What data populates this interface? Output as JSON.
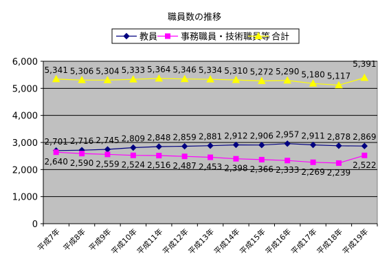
{
  "chart_data": {
    "type": "line",
    "title": "職員数の推移",
    "xlabel": "",
    "ylabel": "",
    "categories": [
      "平成7年",
      "平成8年",
      "平成9年",
      "平成10年",
      "平成11年",
      "平成12年",
      "平成13年",
      "平成14年",
      "平成15年",
      "平成16年",
      "平成17年",
      "平成18年",
      "平成19年"
    ],
    "ylim": [
      0,
      6000
    ],
    "yticks": [
      0,
      1000,
      2000,
      3000,
      4000,
      5000,
      6000
    ],
    "ytick_labels": [
      "0",
      "1,000",
      "2,000",
      "3,000",
      "4,000",
      "5,000",
      "6,000"
    ],
    "grid": true,
    "legend_position": "top",
    "plot_background": "#c0c0c0",
    "series": [
      {
        "name": "教員",
        "color": "#000080",
        "marker": "diamond",
        "values": [
          2701,
          2716,
          2745,
          2809,
          2848,
          2859,
          2881,
          2912,
          2906,
          2957,
          2911,
          2878,
          2869
        ],
        "labels": [
          "2,701",
          "2,716",
          "2,745",
          "2,809",
          "2,848",
          "2,859",
          "2,881",
          "2,912",
          "2,906",
          "2,957",
          "2,911",
          "2,878",
          "2,869"
        ]
      },
      {
        "name": "事務職員・技術職員等",
        "color": "#ff00ff",
        "marker": "square",
        "values": [
          2640,
          2590,
          2559,
          2524,
          2516,
          2487,
          2453,
          2398,
          2366,
          2333,
          2269,
          2239,
          2522
        ],
        "labels": [
          "2,640",
          "2,590",
          "2,559",
          "2,524",
          "2,516",
          "2,487",
          "2,453",
          "2,398",
          "2,366",
          "2,333",
          "2,269",
          "2,239",
          "2,522"
        ]
      },
      {
        "name": "合計",
        "color": "#ffff00",
        "marker": "triangle",
        "values": [
          5341,
          5306,
          5304,
          5333,
          5364,
          5346,
          5334,
          5310,
          5272,
          5290,
          5180,
          5117,
          5391
        ],
        "labels": [
          "5,341",
          "5,306",
          "5,304",
          "5,333",
          "5,364",
          "5,346",
          "5,334",
          "5,310",
          "5,272",
          "5,290",
          "5,180",
          "5,117",
          "5,391"
        ]
      }
    ]
  }
}
